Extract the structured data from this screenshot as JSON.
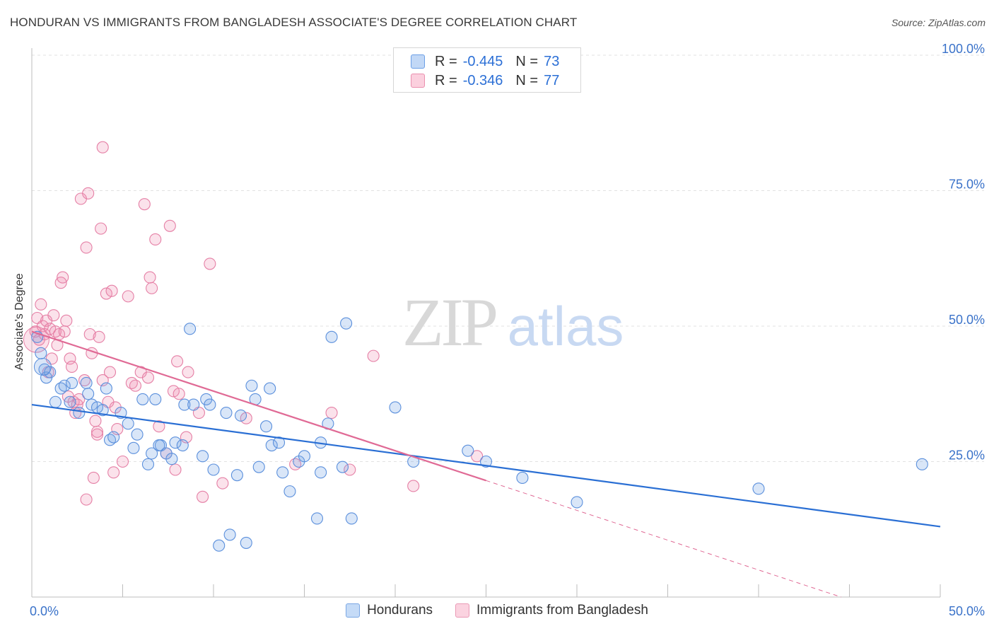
{
  "header": {
    "title": "HONDURAN VS IMMIGRANTS FROM BANGLADESH ASSOCIATE'S DEGREE CORRELATION CHART",
    "source": "Source: ZipAtlas.com"
  },
  "watermark": {
    "zip": "ZIP",
    "atlas": "atlas"
  },
  "legend": {
    "rows": [
      {
        "r_label": "R =",
        "r_value": "-0.445",
        "n_label": "N =",
        "n_value": "73",
        "color": "#a8c8f4",
        "border": "#6b9ee6"
      },
      {
        "r_label": "R =",
        "r_value": "-0.346",
        "n_label": "N =",
        "n_value": "77",
        "color": "#f8c0d2",
        "border": "#ea8fae"
      }
    ]
  },
  "bottom_legend": [
    {
      "label": "Hondurans",
      "color": "#c5dbf7",
      "border": "#7ba7e4"
    },
    {
      "label": "Immigrants from Bangladesh",
      "color": "#fbd3e0",
      "border": "#ea9ab6"
    }
  ],
  "colors": {
    "blue_line": "#2a6fd4",
    "pink_line": "#e06a95",
    "blue_fill": "rgba(120,165,230,0.28)",
    "blue_stroke": "#5a8fdc",
    "pink_fill": "rgba(240,140,175,0.25)",
    "pink_stroke": "#e57fa5",
    "tick_text": "#3a72c9"
  },
  "chart_data": {
    "type": "scatter",
    "title": "HONDURAN VS IMMIGRANTS FROM BANGLADESH ASSOCIATE'S DEGREE CORRELATION CHART",
    "xlabel": "",
    "ylabel": "Associate's Degree",
    "xlim": [
      0,
      50
    ],
    "ylim": [
      0,
      100
    ],
    "x_tick_labels": [
      "0.0%",
      "50.0%"
    ],
    "y_ticks": [
      25,
      50,
      75,
      100
    ],
    "y_tick_labels": [
      "25.0%",
      "50.0%",
      "75.0%",
      "100.0%"
    ],
    "grid": true,
    "series": [
      {
        "name": "Hondurans",
        "r": -0.445,
        "n": 73,
        "trend": {
          "x0": 0,
          "y0": 35.5,
          "x1": 50,
          "y1": 13.0
        },
        "points": [
          [
            0.3,
            48.0
          ],
          [
            0.5,
            45.0
          ],
          [
            0.7,
            42.0
          ],
          [
            0.8,
            40.5
          ],
          [
            1.0,
            41.5
          ],
          [
            1.3,
            36.0
          ],
          [
            1.6,
            38.5
          ],
          [
            1.8,
            39.0
          ],
          [
            2.1,
            36.0
          ],
          [
            2.2,
            39.5
          ],
          [
            2.6,
            34.0
          ],
          [
            3.0,
            39.5
          ],
          [
            3.1,
            37.5
          ],
          [
            3.3,
            35.5
          ],
          [
            3.6,
            35.0
          ],
          [
            3.9,
            34.5
          ],
          [
            4.1,
            38.5
          ],
          [
            4.3,
            29.0
          ],
          [
            4.5,
            29.5
          ],
          [
            4.9,
            34.0
          ],
          [
            5.3,
            32.0
          ],
          [
            5.6,
            27.5
          ],
          [
            5.8,
            30.0
          ],
          [
            6.1,
            36.5
          ],
          [
            6.4,
            24.5
          ],
          [
            6.6,
            26.5
          ],
          [
            6.8,
            36.5
          ],
          [
            7.1,
            28.0
          ],
          [
            7.4,
            26.5
          ],
          [
            7.7,
            25.5
          ],
          [
            7.9,
            28.5
          ],
          [
            8.3,
            28.0
          ],
          [
            8.4,
            35.5
          ],
          [
            8.7,
            49.5
          ],
          [
            8.9,
            35.5
          ],
          [
            9.4,
            26.0
          ],
          [
            9.6,
            36.5
          ],
          [
            9.8,
            35.5
          ],
          [
            10.0,
            23.5
          ],
          [
            10.3,
            9.5
          ],
          [
            10.7,
            34.0
          ],
          [
            10.9,
            11.5
          ],
          [
            11.3,
            22.5
          ],
          [
            11.5,
            33.5
          ],
          [
            11.8,
            10.0
          ],
          [
            12.1,
            39.0
          ],
          [
            12.3,
            36.5
          ],
          [
            12.5,
            24.0
          ],
          [
            12.9,
            31.5
          ],
          [
            13.1,
            38.5
          ],
          [
            13.2,
            28.0
          ],
          [
            13.6,
            28.5
          ],
          [
            13.8,
            23.0
          ],
          [
            14.2,
            19.5
          ],
          [
            14.7,
            25.0
          ],
          [
            15.0,
            26.0
          ],
          [
            15.7,
            14.5
          ],
          [
            15.9,
            23.0
          ],
          [
            15.9,
            28.5
          ],
          [
            16.3,
            32.0
          ],
          [
            16.5,
            48.0
          ],
          [
            17.1,
            24.0
          ],
          [
            17.3,
            50.5
          ],
          [
            17.6,
            14.5
          ],
          [
            20.0,
            35.0
          ],
          [
            21.0,
            25.0
          ],
          [
            24.0,
            27.0
          ],
          [
            25.0,
            25.0
          ],
          [
            27.0,
            22.0
          ],
          [
            30.0,
            17.5
          ],
          [
            40.0,
            20.0
          ],
          [
            49.0,
            24.5
          ],
          [
            7.0,
            28.0
          ]
        ]
      },
      {
        "name": "Immigrants from Bangladesh",
        "r": -0.346,
        "n": 77,
        "trend": {
          "x0": 0,
          "y0": 49.0,
          "x1": 25,
          "y1": 21.5
        },
        "trend_dashed": {
          "x0": 25,
          "y0": 21.5,
          "x1": 50,
          "y1": -6.0
        },
        "points": [
          [
            0.2,
            49.0
          ],
          [
            0.3,
            51.5
          ],
          [
            0.4,
            47.5
          ],
          [
            0.5,
            54.0
          ],
          [
            0.6,
            50.0
          ],
          [
            0.7,
            48.5
          ],
          [
            0.8,
            51.0
          ],
          [
            0.9,
            41.5
          ],
          [
            1.0,
            49.5
          ],
          [
            1.1,
            44.0
          ],
          [
            1.2,
            52.0
          ],
          [
            1.3,
            49.0
          ],
          [
            1.4,
            46.5
          ],
          [
            1.5,
            48.5
          ],
          [
            1.6,
            58.0
          ],
          [
            1.7,
            59.0
          ],
          [
            1.8,
            49.0
          ],
          [
            1.9,
            51.0
          ],
          [
            2.0,
            37.0
          ],
          [
            2.1,
            44.0
          ],
          [
            2.2,
            42.5
          ],
          [
            2.3,
            36.0
          ],
          [
            2.4,
            34.0
          ],
          [
            2.5,
            35.5
          ],
          [
            2.6,
            36.5
          ],
          [
            2.7,
            73.5
          ],
          [
            2.9,
            40.0
          ],
          [
            3.0,
            64.5
          ],
          [
            3.0,
            18.0
          ],
          [
            3.1,
            74.5
          ],
          [
            3.2,
            48.5
          ],
          [
            3.3,
            45.0
          ],
          [
            3.4,
            22.0
          ],
          [
            3.5,
            32.5
          ],
          [
            3.6,
            30.0
          ],
          [
            3.6,
            30.5
          ],
          [
            3.7,
            48.0
          ],
          [
            3.8,
            68.0
          ],
          [
            3.9,
            40.0
          ],
          [
            3.9,
            83.0
          ],
          [
            4.1,
            56.0
          ],
          [
            4.2,
            36.0
          ],
          [
            4.3,
            41.5
          ],
          [
            4.4,
            56.5
          ],
          [
            4.5,
            23.0
          ],
          [
            4.6,
            35.0
          ],
          [
            4.7,
            31.0
          ],
          [
            5.0,
            25.0
          ],
          [
            5.3,
            55.5
          ],
          [
            5.5,
            39.5
          ],
          [
            5.7,
            39.0
          ],
          [
            6.0,
            41.5
          ],
          [
            6.2,
            72.5
          ],
          [
            6.4,
            40.5
          ],
          [
            6.5,
            59.0
          ],
          [
            6.6,
            57.0
          ],
          [
            6.8,
            66.0
          ],
          [
            7.0,
            31.5
          ],
          [
            7.4,
            26.5
          ],
          [
            7.6,
            68.5
          ],
          [
            7.8,
            38.0
          ],
          [
            7.9,
            23.5
          ],
          [
            8.0,
            43.5
          ],
          [
            8.1,
            37.5
          ],
          [
            8.5,
            29.5
          ],
          [
            8.6,
            41.5
          ],
          [
            9.2,
            34.0
          ],
          [
            9.4,
            18.5
          ],
          [
            9.8,
            61.5
          ],
          [
            10.5,
            21.0
          ],
          [
            11.8,
            33.0
          ],
          [
            14.5,
            24.5
          ],
          [
            16.5,
            34.0
          ],
          [
            17.5,
            23.5
          ],
          [
            18.8,
            44.5
          ],
          [
            21.0,
            20.5
          ],
          [
            24.5,
            26.0
          ]
        ]
      }
    ]
  }
}
